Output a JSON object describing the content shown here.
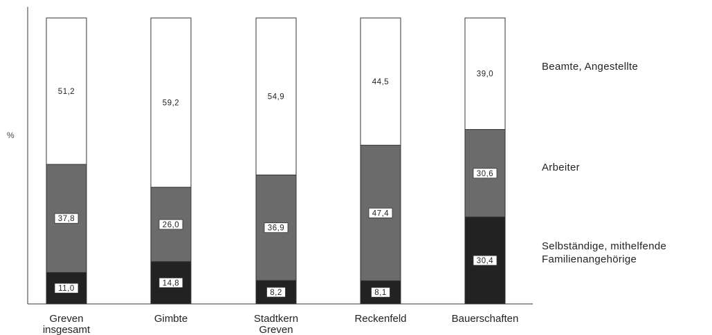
{
  "chart_data": {
    "type": "bar",
    "stacked": true,
    "percent": true,
    "ylabel": "%",
    "ylim": [
      0,
      100
    ],
    "grid": false,
    "legend_position": "right",
    "categories": [
      [
        "Greven",
        "insgesamt"
      ],
      [
        "Gimbte"
      ],
      [
        "Stadtkern",
        "Greven"
      ],
      [
        "Reckenfeld"
      ],
      [
        "Bauerschaften"
      ]
    ],
    "series": [
      {
        "name": [
          "Selbständige, mithelfende",
          "Familienangehörige"
        ],
        "color": "#222222",
        "values": [
          11.0,
          14.8,
          8.2,
          8.1,
          30.4
        ],
        "labels": [
          "11,0",
          "14,8",
          "8,2",
          "8,1",
          "30,4"
        ]
      },
      {
        "name": [
          "Arbeiter"
        ],
        "color": "#6b6b6b",
        "values": [
          37.8,
          26.0,
          36.9,
          47.4,
          30.6
        ],
        "labels": [
          "37,8",
          "26,0",
          "36,9",
          "47,4",
          "30,6"
        ]
      },
      {
        "name": [
          "Beamte, Angestellte"
        ],
        "color": "#ffffff",
        "values": [
          51.2,
          59.2,
          54.9,
          44.5,
          39.0
        ],
        "labels": [
          "51,2",
          "59,2",
          "54,9",
          "44,5",
          "39,0"
        ]
      }
    ]
  }
}
